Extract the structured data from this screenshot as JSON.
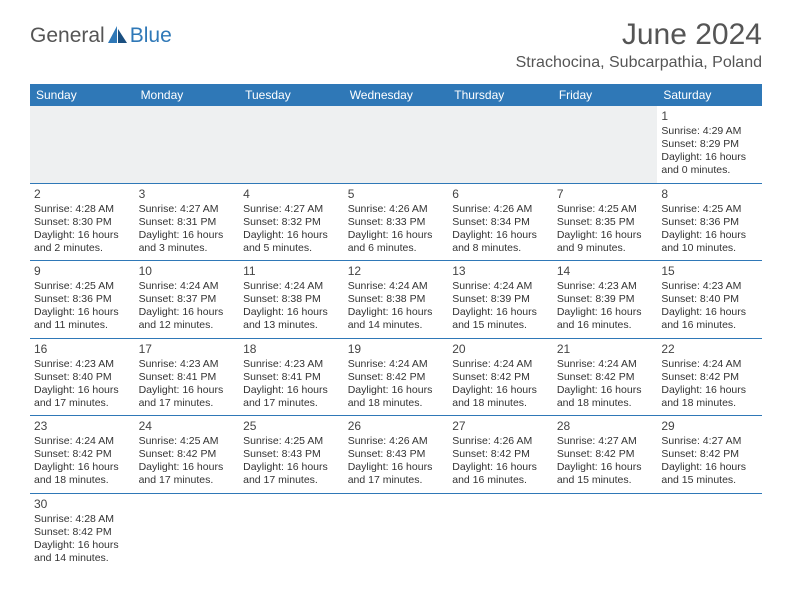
{
  "brand": {
    "part1": "General",
    "part2": "Blue"
  },
  "title": "June 2024",
  "location": "Strachocina, Subcarpathia, Poland",
  "colors": {
    "header_bg": "#2f78b7",
    "header_fg": "#ffffff",
    "border": "#2f78b7",
    "empty_bg": "#eef0f1"
  },
  "weekdays": [
    "Sunday",
    "Monday",
    "Tuesday",
    "Wednesday",
    "Thursday",
    "Friday",
    "Saturday"
  ],
  "weeks": [
    [
      null,
      null,
      null,
      null,
      null,
      null,
      {
        "n": "1",
        "sr": "Sunrise: 4:29 AM",
        "ss": "Sunset: 8:29 PM",
        "dl1": "Daylight: 16 hours",
        "dl2": "and 0 minutes."
      }
    ],
    [
      {
        "n": "2",
        "sr": "Sunrise: 4:28 AM",
        "ss": "Sunset: 8:30 PM",
        "dl1": "Daylight: 16 hours",
        "dl2": "and 2 minutes."
      },
      {
        "n": "3",
        "sr": "Sunrise: 4:27 AM",
        "ss": "Sunset: 8:31 PM",
        "dl1": "Daylight: 16 hours",
        "dl2": "and 3 minutes."
      },
      {
        "n": "4",
        "sr": "Sunrise: 4:27 AM",
        "ss": "Sunset: 8:32 PM",
        "dl1": "Daylight: 16 hours",
        "dl2": "and 5 minutes."
      },
      {
        "n": "5",
        "sr": "Sunrise: 4:26 AM",
        "ss": "Sunset: 8:33 PM",
        "dl1": "Daylight: 16 hours",
        "dl2": "and 6 minutes."
      },
      {
        "n": "6",
        "sr": "Sunrise: 4:26 AM",
        "ss": "Sunset: 8:34 PM",
        "dl1": "Daylight: 16 hours",
        "dl2": "and 8 minutes."
      },
      {
        "n": "7",
        "sr": "Sunrise: 4:25 AM",
        "ss": "Sunset: 8:35 PM",
        "dl1": "Daylight: 16 hours",
        "dl2": "and 9 minutes."
      },
      {
        "n": "8",
        "sr": "Sunrise: 4:25 AM",
        "ss": "Sunset: 8:36 PM",
        "dl1": "Daylight: 16 hours",
        "dl2": "and 10 minutes."
      }
    ],
    [
      {
        "n": "9",
        "sr": "Sunrise: 4:25 AM",
        "ss": "Sunset: 8:36 PM",
        "dl1": "Daylight: 16 hours",
        "dl2": "and 11 minutes."
      },
      {
        "n": "10",
        "sr": "Sunrise: 4:24 AM",
        "ss": "Sunset: 8:37 PM",
        "dl1": "Daylight: 16 hours",
        "dl2": "and 12 minutes."
      },
      {
        "n": "11",
        "sr": "Sunrise: 4:24 AM",
        "ss": "Sunset: 8:38 PM",
        "dl1": "Daylight: 16 hours",
        "dl2": "and 13 minutes."
      },
      {
        "n": "12",
        "sr": "Sunrise: 4:24 AM",
        "ss": "Sunset: 8:38 PM",
        "dl1": "Daylight: 16 hours",
        "dl2": "and 14 minutes."
      },
      {
        "n": "13",
        "sr": "Sunrise: 4:24 AM",
        "ss": "Sunset: 8:39 PM",
        "dl1": "Daylight: 16 hours",
        "dl2": "and 15 minutes."
      },
      {
        "n": "14",
        "sr": "Sunrise: 4:23 AM",
        "ss": "Sunset: 8:39 PM",
        "dl1": "Daylight: 16 hours",
        "dl2": "and 16 minutes."
      },
      {
        "n": "15",
        "sr": "Sunrise: 4:23 AM",
        "ss": "Sunset: 8:40 PM",
        "dl1": "Daylight: 16 hours",
        "dl2": "and 16 minutes."
      }
    ],
    [
      {
        "n": "16",
        "sr": "Sunrise: 4:23 AM",
        "ss": "Sunset: 8:40 PM",
        "dl1": "Daylight: 16 hours",
        "dl2": "and 17 minutes."
      },
      {
        "n": "17",
        "sr": "Sunrise: 4:23 AM",
        "ss": "Sunset: 8:41 PM",
        "dl1": "Daylight: 16 hours",
        "dl2": "and 17 minutes."
      },
      {
        "n": "18",
        "sr": "Sunrise: 4:23 AM",
        "ss": "Sunset: 8:41 PM",
        "dl1": "Daylight: 16 hours",
        "dl2": "and 17 minutes."
      },
      {
        "n": "19",
        "sr": "Sunrise: 4:24 AM",
        "ss": "Sunset: 8:42 PM",
        "dl1": "Daylight: 16 hours",
        "dl2": "and 18 minutes."
      },
      {
        "n": "20",
        "sr": "Sunrise: 4:24 AM",
        "ss": "Sunset: 8:42 PM",
        "dl1": "Daylight: 16 hours",
        "dl2": "and 18 minutes."
      },
      {
        "n": "21",
        "sr": "Sunrise: 4:24 AM",
        "ss": "Sunset: 8:42 PM",
        "dl1": "Daylight: 16 hours",
        "dl2": "and 18 minutes."
      },
      {
        "n": "22",
        "sr": "Sunrise: 4:24 AM",
        "ss": "Sunset: 8:42 PM",
        "dl1": "Daylight: 16 hours",
        "dl2": "and 18 minutes."
      }
    ],
    [
      {
        "n": "23",
        "sr": "Sunrise: 4:24 AM",
        "ss": "Sunset: 8:42 PM",
        "dl1": "Daylight: 16 hours",
        "dl2": "and 18 minutes."
      },
      {
        "n": "24",
        "sr": "Sunrise: 4:25 AM",
        "ss": "Sunset: 8:42 PM",
        "dl1": "Daylight: 16 hours",
        "dl2": "and 17 minutes."
      },
      {
        "n": "25",
        "sr": "Sunrise: 4:25 AM",
        "ss": "Sunset: 8:43 PM",
        "dl1": "Daylight: 16 hours",
        "dl2": "and 17 minutes."
      },
      {
        "n": "26",
        "sr": "Sunrise: 4:26 AM",
        "ss": "Sunset: 8:43 PM",
        "dl1": "Daylight: 16 hours",
        "dl2": "and 17 minutes."
      },
      {
        "n": "27",
        "sr": "Sunrise: 4:26 AM",
        "ss": "Sunset: 8:42 PM",
        "dl1": "Daylight: 16 hours",
        "dl2": "and 16 minutes."
      },
      {
        "n": "28",
        "sr": "Sunrise: 4:27 AM",
        "ss": "Sunset: 8:42 PM",
        "dl1": "Daylight: 16 hours",
        "dl2": "and 15 minutes."
      },
      {
        "n": "29",
        "sr": "Sunrise: 4:27 AM",
        "ss": "Sunset: 8:42 PM",
        "dl1": "Daylight: 16 hours",
        "dl2": "and 15 minutes."
      }
    ],
    [
      {
        "n": "30",
        "sr": "Sunrise: 4:28 AM",
        "ss": "Sunset: 8:42 PM",
        "dl1": "Daylight: 16 hours",
        "dl2": "and 14 minutes."
      },
      null,
      null,
      null,
      null,
      null,
      null
    ]
  ]
}
